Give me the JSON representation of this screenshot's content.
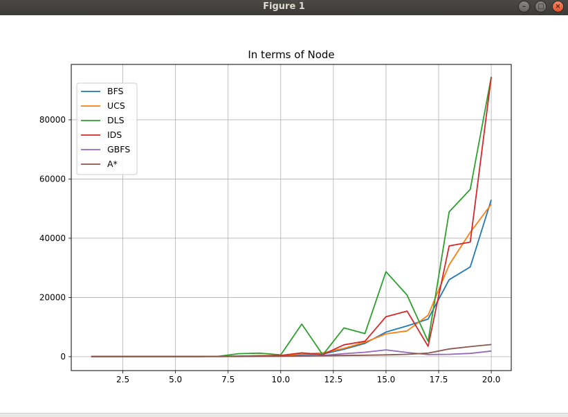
{
  "window": {
    "title": "Figure 1"
  },
  "chart_data": {
    "type": "line",
    "title": "In terms of Node",
    "xlabel": "",
    "ylabel": "",
    "xlim": [
      0.05,
      20.95
    ],
    "ylim": [
      -4700,
      98700
    ],
    "xticks": [
      2.5,
      5.0,
      7.5,
      10.0,
      12.5,
      15.0,
      17.5,
      20.0
    ],
    "xtick_labels": [
      "2.5",
      "5.0",
      "7.5",
      "10.0",
      "12.5",
      "15.0",
      "17.5",
      "20.0"
    ],
    "yticks": [
      0,
      20000,
      40000,
      60000,
      80000
    ],
    "ytick_labels": [
      "0",
      "20000",
      "40000",
      "60000",
      "80000"
    ],
    "grid": true,
    "legend_position": "top-left",
    "x": [
      1,
      2,
      3,
      4,
      5,
      6,
      7,
      8,
      9,
      10,
      11,
      12,
      13,
      14,
      15,
      16,
      17,
      18,
      19,
      20
    ],
    "series": [
      {
        "name": "BFS",
        "color": "#1f77b4",
        "values": [
          50,
          50,
          50,
          50,
          50,
          50,
          100,
          200,
          300,
          400,
          700,
          900,
          2500,
          4500,
          8300,
          10400,
          12700,
          26000,
          30300,
          53000
        ]
      },
      {
        "name": "UCS",
        "color": "#ff7f0e",
        "values": [
          50,
          50,
          50,
          50,
          50,
          50,
          100,
          200,
          300,
          400,
          900,
          1300,
          2800,
          4900,
          7700,
          8700,
          14000,
          31000,
          42000,
          51500
        ]
      },
      {
        "name": "DLS",
        "color": "#2ca02c",
        "values": [
          50,
          50,
          50,
          50,
          50,
          50,
          100,
          1000,
          1200,
          600,
          11000,
          600,
          9700,
          7800,
          28700,
          20800,
          5200,
          48900,
          56500,
          94500
        ]
      },
      {
        "name": "IDS",
        "color": "#d62728",
        "values": [
          50,
          50,
          50,
          50,
          50,
          50,
          100,
          200,
          300,
          400,
          1300,
          700,
          4000,
          5200,
          13500,
          15400,
          3500,
          37400,
          38700,
          94500
        ]
      },
      {
        "name": "GBFS",
        "color": "#9467bd",
        "values": [
          50,
          50,
          50,
          50,
          50,
          50,
          50,
          50,
          100,
          100,
          200,
          400,
          1000,
          1500,
          2300,
          1400,
          700,
          800,
          1100,
          1900
        ]
      },
      {
        "name": "A*",
        "color": "#8c564b",
        "values": [
          50,
          50,
          50,
          50,
          50,
          50,
          50,
          100,
          150,
          200,
          250,
          300,
          400,
          500,
          600,
          800,
          1200,
          2600,
          3400,
          4100
        ]
      }
    ]
  }
}
